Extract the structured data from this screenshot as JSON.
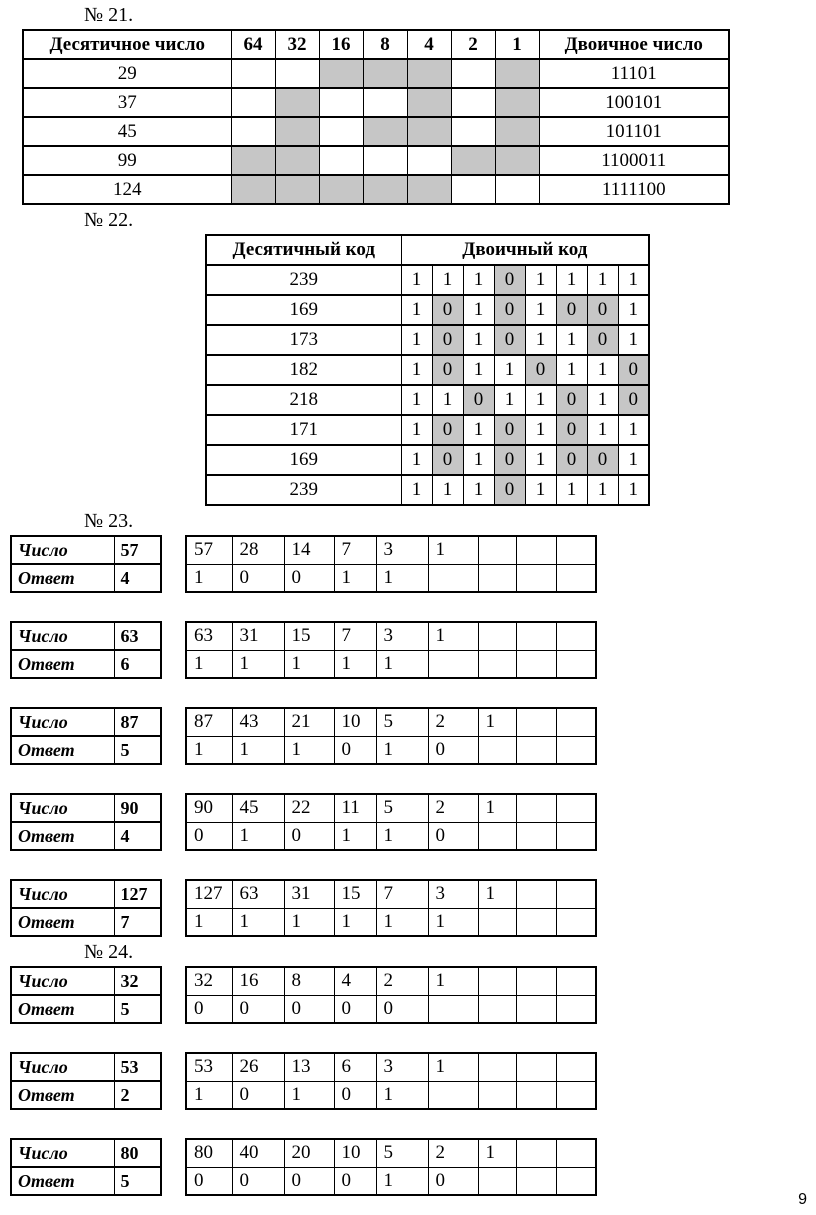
{
  "page": {
    "number": "9"
  },
  "sections": {
    "s21": {
      "heading": "№ 21."
    },
    "s22": {
      "heading": "№ 22."
    },
    "s23": {
      "heading": "№ 23."
    },
    "s24": {
      "heading": "№ 24."
    }
  },
  "tables": {
    "t21": {
      "grid": [
        [
          {
            "t": "Десятичное число",
            "h": 1
          },
          {
            "t": "64",
            "h": 1
          },
          {
            "t": "32",
            "h": 1
          },
          {
            "t": "16",
            "h": 1
          },
          {
            "t": "8",
            "h": 1
          },
          {
            "t": "4",
            "h": 1
          },
          {
            "t": "2",
            "h": 1
          },
          {
            "t": "1",
            "h": 1
          },
          {
            "t": "Двоичное число",
            "h": 1
          }
        ],
        [
          "29",
          "",
          "",
          {
            "s": 1
          },
          {
            "s": 1
          },
          {
            "s": 1
          },
          "",
          {
            "s": 1
          },
          "11101"
        ],
        [
          "37",
          "",
          {
            "s": 1
          },
          "",
          "",
          {
            "s": 1
          },
          "",
          {
            "s": 1
          },
          "100101"
        ],
        [
          "45",
          "",
          {
            "s": 1
          },
          "",
          {
            "s": 1
          },
          {
            "s": 1
          },
          "",
          {
            "s": 1
          },
          "101101"
        ],
        [
          "99",
          {
            "s": 1
          },
          {
            "s": 1
          },
          "",
          "",
          "",
          {
            "s": 1
          },
          {
            "s": 1
          },
          "1100011"
        ],
        [
          "124",
          {
            "s": 1
          },
          {
            "s": 1
          },
          {
            "s": 1
          },
          {
            "s": 1
          },
          {
            "s": 1
          },
          "",
          "",
          "1111100"
        ]
      ]
    },
    "t22": {
      "grid": [
        [
          {
            "t": "Десятичный код",
            "h": 1
          },
          {
            "t": "Двоичный код",
            "h": 1,
            "span": 8
          }
        ],
        [
          "239",
          "1",
          "1",
          "1",
          {
            "t": "0",
            "s": 1
          },
          "1",
          "1",
          "1",
          "1"
        ],
        [
          "169",
          "1",
          {
            "t": "0",
            "s": 1
          },
          "1",
          {
            "t": "0",
            "s": 1
          },
          "1",
          {
            "t": "0",
            "s": 1
          },
          {
            "t": "0",
            "s": 1
          },
          "1"
        ],
        [
          "173",
          "1",
          {
            "t": "0",
            "s": 1
          },
          "1",
          {
            "t": "0",
            "s": 1
          },
          "1",
          "1",
          {
            "t": "0",
            "s": 1
          },
          "1"
        ],
        [
          "182",
          "1",
          {
            "t": "0",
            "s": 1
          },
          "1",
          "1",
          {
            "t": "0",
            "s": 1
          },
          "1",
          "1",
          {
            "t": "0",
            "s": 1
          }
        ],
        [
          "218",
          "1",
          "1",
          {
            "t": "0",
            "s": 1
          },
          "1",
          "1",
          {
            "t": "0",
            "s": 1
          },
          "1",
          {
            "t": "0",
            "s": 1
          }
        ],
        [
          "171",
          "1",
          {
            "t": "0",
            "s": 1
          },
          "1",
          {
            "t": "0",
            "s": 1
          },
          "1",
          {
            "t": "0",
            "s": 1
          },
          "1",
          "1"
        ],
        [
          "169",
          "1",
          {
            "t": "0",
            "s": 1
          },
          "1",
          {
            "t": "0",
            "s": 1
          },
          "1",
          {
            "t": "0",
            "s": 1
          },
          {
            "t": "0",
            "s": 1
          },
          "1"
        ],
        [
          "239",
          "1",
          "1",
          "1",
          {
            "t": "0",
            "s": 1
          },
          "1",
          "1",
          "1",
          "1"
        ]
      ]
    },
    "blocks23": [
      {
        "left": [
          [
            "Число",
            "57"
          ],
          [
            "Ответ",
            "4"
          ]
        ],
        "right": [
          [
            "57",
            "28",
            "14",
            "7",
            "3",
            "1",
            "",
            "",
            ""
          ],
          [
            "1",
            "0",
            "0",
            "1",
            "1",
            "",
            "",
            "",
            ""
          ]
        ]
      },
      {
        "left": [
          [
            "Число",
            "63"
          ],
          [
            "Ответ",
            "6"
          ]
        ],
        "right": [
          [
            "63",
            "31",
            "15",
            "7",
            "3",
            "1",
            "",
            "",
            ""
          ],
          [
            "1",
            "1",
            "1",
            "1",
            "1",
            "",
            "",
            "",
            ""
          ]
        ]
      },
      {
        "left": [
          [
            "Число",
            "87"
          ],
          [
            "Ответ",
            "5"
          ]
        ],
        "right": [
          [
            "87",
            "43",
            "21",
            "10",
            "5",
            "2",
            "1",
            "",
            ""
          ],
          [
            "1",
            "1",
            "1",
            "0",
            "1",
            "0",
            "",
            "",
            ""
          ]
        ]
      },
      {
        "left": [
          [
            "Число",
            "90"
          ],
          [
            "Ответ",
            "4"
          ]
        ],
        "right": [
          [
            "90",
            "45",
            "22",
            "11",
            "5",
            "2",
            "1",
            "",
            ""
          ],
          [
            "0",
            "1",
            "0",
            "1",
            "1",
            "0",
            "",
            "",
            ""
          ]
        ]
      },
      {
        "left": [
          [
            "Число",
            "127"
          ],
          [
            "Ответ",
            "7"
          ]
        ],
        "right": [
          [
            "127",
            "63",
            "31",
            "15",
            "7",
            "3",
            "1",
            "",
            ""
          ],
          [
            "1",
            "1",
            "1",
            "1",
            "1",
            "1",
            "",
            "",
            ""
          ]
        ]
      }
    ],
    "blocks24": [
      {
        "left": [
          [
            "Число",
            "32"
          ],
          [
            "Ответ",
            "5"
          ]
        ],
        "right": [
          [
            "32",
            "16",
            "8",
            "4",
            "2",
            "1",
            "",
            "",
            ""
          ],
          [
            "0",
            "0",
            "0",
            "0",
            "0",
            "",
            "",
            "",
            ""
          ]
        ]
      },
      {
        "left": [
          [
            "Число",
            "53"
          ],
          [
            "Ответ",
            "2"
          ]
        ],
        "right": [
          [
            "53",
            "26",
            "13",
            "6",
            "3",
            "1",
            "",
            "",
            ""
          ],
          [
            "1",
            "0",
            "1",
            "0",
            "1",
            "",
            "",
            "",
            ""
          ]
        ]
      },
      {
        "left": [
          [
            "Число",
            "80"
          ],
          [
            "Ответ",
            "5"
          ]
        ],
        "right": [
          [
            "80",
            "40",
            "20",
            "10",
            "5",
            "2",
            "1",
            "",
            ""
          ],
          [
            "0",
            "0",
            "0",
            "0",
            "1",
            "0",
            "",
            "",
            ""
          ]
        ]
      }
    ]
  }
}
